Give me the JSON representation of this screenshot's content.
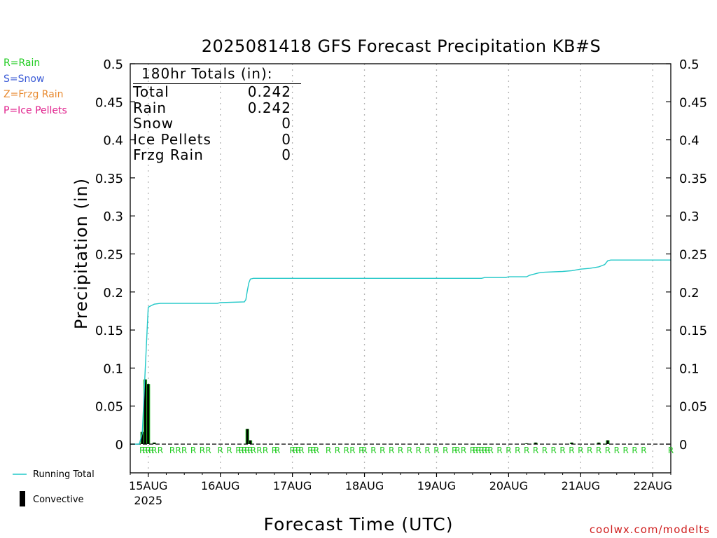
{
  "header": {
    "title": "2025081418 GFS Forecast Precipitation KB#S",
    "credit": "coolwx.com/modelts"
  },
  "type_legend": [
    {
      "label": "R=Rain",
      "color": "#22cc22"
    },
    {
      "label": "S=Snow",
      "color": "#3b5bd6"
    },
    {
      "label": "Z=Frzg Rain",
      "color": "#e88a30"
    },
    {
      "label": "P=Ice Pellets",
      "color": "#e0208c"
    }
  ],
  "key": {
    "running_total": "Running Total",
    "convective": "Convective",
    "running_total_color": "#22c8c8",
    "convective_color": "#000000"
  },
  "totals": {
    "header": "180hr Totals (in):",
    "rows": [
      {
        "label": "Total",
        "value": "0.242"
      },
      {
        "label": "Rain",
        "value": "0.242"
      },
      {
        "label": "Snow",
        "value": "0"
      },
      {
        "label": "Ice Pellets",
        "value": "0"
      },
      {
        "label": "Frzg Rain",
        "value": "0"
      }
    ]
  },
  "chart_data": {
    "type": "line",
    "title": "2025081418 GFS Forecast Precipitation KB#S",
    "xlabel": "Forecast Time (UTC)",
    "ylabel": "Precipitation (in)",
    "ylim": [
      0,
      0.5
    ],
    "yticks": [
      "0",
      "0.05",
      "0.1",
      "0.15",
      "0.2",
      "0.25",
      "0.3",
      "0.35",
      "0.4",
      "0.45",
      "0.5"
    ],
    "xlim": [
      "2025-08-14T18:00Z",
      "2025-08-22T06:00Z"
    ],
    "xtick_labels": [
      "15AUG",
      "16AUG",
      "17AUG",
      "18AUG",
      "19AUG",
      "20AUG",
      "21AUG",
      "22AUG"
    ],
    "xtick_year": "2025",
    "grid": "vertical dotted at each day",
    "series": [
      {
        "name": "Running Total",
        "type": "line",
        "color": "#22c8c8",
        "points": [
          [
            "2025-08-14T18:00Z",
            0.0
          ],
          [
            "2025-08-14T21:00Z",
            0.0
          ],
          [
            "2025-08-14T22:00Z",
            0.014
          ],
          [
            "2025-08-14T23:00Z",
            0.098
          ],
          [
            "2025-08-15T00:00Z",
            0.18
          ],
          [
            "2025-08-15T01:00Z",
            0.182
          ],
          [
            "2025-08-15T02:00Z",
            0.184
          ],
          [
            "2025-08-15T04:00Z",
            0.185
          ],
          [
            "2025-08-15T12:00Z",
            0.185
          ],
          [
            "2025-08-15T23:00Z",
            0.185
          ],
          [
            "2025-08-16T00:00Z",
            0.186
          ],
          [
            "2025-08-16T08:00Z",
            0.187
          ],
          [
            "2025-08-16T08:30Z",
            0.19
          ],
          [
            "2025-08-16T09:00Z",
            0.202
          ],
          [
            "2025-08-16T09:30Z",
            0.212
          ],
          [
            "2025-08-16T10:00Z",
            0.217
          ],
          [
            "2025-08-16T11:00Z",
            0.218
          ],
          [
            "2025-08-19T15:00Z",
            0.218
          ],
          [
            "2025-08-19T16:00Z",
            0.219
          ],
          [
            "2025-08-19T23:00Z",
            0.219
          ],
          [
            "2025-08-20T00:00Z",
            0.22
          ],
          [
            "2025-08-20T06:00Z",
            0.22
          ],
          [
            "2025-08-20T07:00Z",
            0.222
          ],
          [
            "2025-08-20T08:00Z",
            0.223
          ],
          [
            "2025-08-20T09:00Z",
            0.224
          ],
          [
            "2025-08-20T10:00Z",
            0.225
          ],
          [
            "2025-08-20T12:00Z",
            0.226
          ],
          [
            "2025-08-20T18:00Z",
            0.227
          ],
          [
            "2025-08-20T21:00Z",
            0.228
          ],
          [
            "2025-08-21T00:00Z",
            0.23
          ],
          [
            "2025-08-21T03:00Z",
            0.231
          ],
          [
            "2025-08-21T06:00Z",
            0.233
          ],
          [
            "2025-08-21T08:00Z",
            0.236
          ],
          [
            "2025-08-21T09:00Z",
            0.241
          ],
          [
            "2025-08-21T10:00Z",
            0.242
          ],
          [
            "2025-08-22T06:00Z",
            0.242
          ]
        ]
      },
      {
        "name": "Convective",
        "type": "bar",
        "color": "#000000",
        "points": [
          [
            "2025-08-14T22:00Z",
            0.016
          ],
          [
            "2025-08-14T23:00Z",
            0.085
          ],
          [
            "2025-08-15T00:00Z",
            0.079
          ],
          [
            "2025-08-15T02:00Z",
            0.002
          ],
          [
            "2025-08-16T09:00Z",
            0.02
          ],
          [
            "2025-08-16T10:00Z",
            0.005
          ],
          [
            "2025-08-20T06:00Z",
            0.001
          ],
          [
            "2025-08-20T09:00Z",
            0.002
          ],
          [
            "2025-08-20T21:00Z",
            0.002
          ],
          [
            "2025-08-21T06:00Z",
            0.002
          ],
          [
            "2025-08-21T09:00Z",
            0.005
          ]
        ]
      },
      {
        "name": "Rain",
        "type": "bar",
        "color": "#22cc22",
        "points": [
          [
            "2025-08-14T22:00Z",
            0.016
          ],
          [
            "2025-08-14T23:00Z",
            0.085
          ],
          [
            "2025-08-15T00:00Z",
            0.079
          ],
          [
            "2025-08-15T02:00Z",
            0.002
          ],
          [
            "2025-08-16T09:00Z",
            0.02
          ],
          [
            "2025-08-16T10:00Z",
            0.005
          ],
          [
            "2025-08-20T06:00Z",
            0.001
          ],
          [
            "2025-08-20T09:00Z",
            0.002
          ],
          [
            "2025-08-20T21:00Z",
            0.002
          ],
          [
            "2025-08-21T06:00Z",
            0.002
          ],
          [
            "2025-08-21T09:00Z",
            0.005
          ]
        ]
      }
    ],
    "type_markers": {
      "symbol": "R",
      "color": "#22cc22",
      "times": [
        "2025-08-14T22:00Z",
        "2025-08-14T23:00Z",
        "2025-08-15T00:00Z",
        "2025-08-15T01:00Z",
        "2025-08-15T02:00Z",
        "2025-08-15T04:00Z",
        "2025-08-15T08:00Z",
        "2025-08-15T10:00Z",
        "2025-08-15T12:00Z",
        "2025-08-15T15:00Z",
        "2025-08-15T18:00Z",
        "2025-08-15T20:00Z",
        "2025-08-16T00:00Z",
        "2025-08-16T03:00Z",
        "2025-08-16T06:00Z",
        "2025-08-16T07:00Z",
        "2025-08-16T08:00Z",
        "2025-08-16T09:00Z",
        "2025-08-16T10:00Z",
        "2025-08-16T11:00Z",
        "2025-08-16T13:00Z",
        "2025-08-16T15:00Z",
        "2025-08-16T18:00Z",
        "2025-08-16T19:00Z",
        "2025-08-17T00:00Z",
        "2025-08-17T01:00Z",
        "2025-08-17T02:00Z",
        "2025-08-17T03:00Z",
        "2025-08-17T06:00Z",
        "2025-08-17T07:00Z",
        "2025-08-17T08:00Z",
        "2025-08-17T12:00Z",
        "2025-08-17T15:00Z",
        "2025-08-17T18:00Z",
        "2025-08-17T20:00Z",
        "2025-08-17T23:00Z",
        "2025-08-18T00:00Z",
        "2025-08-18T03:00Z",
        "2025-08-18T06:00Z",
        "2025-08-18T09:00Z",
        "2025-08-18T12:00Z",
        "2025-08-18T15:00Z",
        "2025-08-18T18:00Z",
        "2025-08-18T21:00Z",
        "2025-08-19T00:00Z",
        "2025-08-19T03:00Z",
        "2025-08-19T06:00Z",
        "2025-08-19T07:00Z",
        "2025-08-19T09:00Z",
        "2025-08-19T12:00Z",
        "2025-08-19T13:00Z",
        "2025-08-19T14:00Z",
        "2025-08-19T15:00Z",
        "2025-08-19T16:00Z",
        "2025-08-19T17:00Z",
        "2025-08-19T18:00Z",
        "2025-08-19T21:00Z",
        "2025-08-20T00:00Z",
        "2025-08-20T03:00Z",
        "2025-08-20T06:00Z",
        "2025-08-20T09:00Z",
        "2025-08-20T12:00Z",
        "2025-08-20T15:00Z",
        "2025-08-20T18:00Z",
        "2025-08-20T21:00Z",
        "2025-08-21T00:00Z",
        "2025-08-21T03:00Z",
        "2025-08-21T06:00Z",
        "2025-08-21T09:00Z",
        "2025-08-21T12:00Z",
        "2025-08-21T15:00Z",
        "2025-08-21T18:00Z",
        "2025-08-21T21:00Z",
        "2025-08-22T06:00Z"
      ]
    }
  }
}
